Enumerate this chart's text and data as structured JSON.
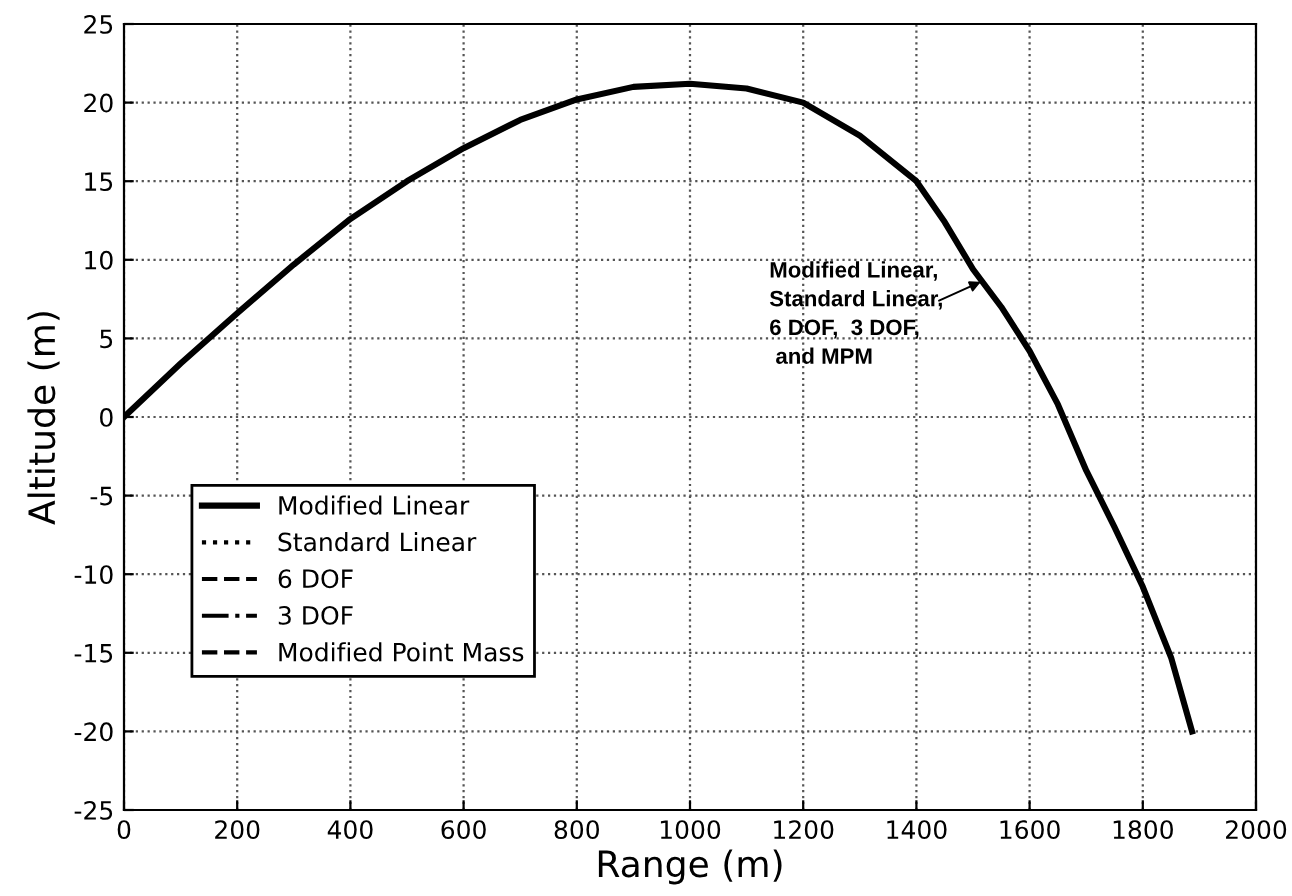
{
  "chart_data": {
    "type": "line",
    "xlabel": "Range (m)",
    "ylabel": "Altitude (m)",
    "x": [
      0,
      100,
      200,
      300,
      400,
      500,
      600,
      700,
      800,
      900,
      1000,
      1100,
      1200,
      1300,
      1400,
      1450,
      1500,
      1550,
      1600,
      1650,
      1700,
      1750,
      1800,
      1850,
      1887
    ],
    "series": [
      {
        "name": "Modified Linear",
        "color": "#000000",
        "line_style": "solid",
        "values": [
          0,
          3.4,
          6.6,
          9.7,
          12.6,
          15.0,
          17.1,
          18.9,
          20.2,
          21.0,
          21.2,
          20.9,
          20.0,
          17.9,
          15.0,
          12.4,
          9.4,
          7.0,
          4.2,
          0.8,
          -3.4,
          -7.0,
          -10.8,
          -15.3,
          -20
        ]
      },
      {
        "name": "Standard Linear",
        "color": "#000000",
        "line_style": "dotted",
        "values": [
          null,
          null,
          null,
          null,
          null,
          null,
          null,
          null,
          null,
          null,
          null,
          null,
          null,
          null,
          null,
          null,
          null,
          null,
          null,
          null,
          null,
          null,
          null,
          null,
          null
        ]
      },
      {
        "name": "6 DOF",
        "color": "#000000",
        "line_style": "dashed",
        "values": [
          null,
          null,
          null,
          null,
          null,
          null,
          null,
          null,
          null,
          null,
          null,
          null,
          null,
          null,
          null,
          null,
          null,
          null,
          null,
          null,
          null,
          null,
          null,
          null,
          null
        ]
      },
      {
        "name": "3 DOF",
        "color": "#000000",
        "line_style": "dashdot",
        "values": [
          null,
          null,
          null,
          null,
          null,
          null,
          null,
          null,
          null,
          null,
          null,
          null,
          null,
          null,
          null,
          null,
          null,
          null,
          null,
          null,
          null,
          null,
          null,
          null,
          null
        ]
      },
      {
        "name": "Modified Point Mass",
        "color": "#000000",
        "line_style": "dashed",
        "values": [
          null,
          null,
          null,
          null,
          null,
          null,
          null,
          null,
          null,
          null,
          null,
          null,
          null,
          null,
          null,
          null,
          null,
          null,
          null,
          null,
          null,
          null,
          null,
          null,
          null
        ]
      }
    ],
    "xlim": [
      0,
      2000
    ],
    "xticks": [
      0,
      200,
      400,
      600,
      800,
      1000,
      1200,
      1400,
      1600,
      1800,
      2000
    ],
    "ylim": [
      -25,
      25
    ],
    "yticks": [
      -25,
      -20,
      -15,
      -10,
      -5,
      0,
      5,
      10,
      15,
      20,
      25
    ],
    "grid": true,
    "legend": "bottom left",
    "marker": "none",
    "annotations": [
      {
        "text": "Modified Linear,\nStandard Linear,\n6 DOF,  3 DOF,\n and MPM",
        "x": 1514,
        "y": 8.6
      }
    ]
  }
}
